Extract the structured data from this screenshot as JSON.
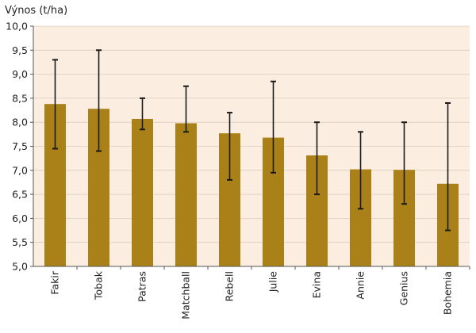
{
  "chart_data": {
    "type": "bar",
    "ylabel": "Výnos (t/ha)",
    "xlabel": "",
    "ylim": [
      5.0,
      10.0
    ],
    "yticks": [
      "5,0",
      "5,5",
      "6,0",
      "6,5",
      "7,0",
      "7,5",
      "8,0",
      "8,5",
      "9,0",
      "9,5",
      "10,0"
    ],
    "ytick_values": [
      5.0,
      5.5,
      6.0,
      6.5,
      7.0,
      7.5,
      8.0,
      8.5,
      9.0,
      9.5,
      10.0
    ],
    "categories": [
      "Fakir",
      "Tobak",
      "Patras",
      "Matchball",
      "Rebell",
      "Julie",
      "Evina",
      "Annie",
      "Genius",
      "Bohemia"
    ],
    "values": [
      8.38,
      8.28,
      8.07,
      7.98,
      7.77,
      7.68,
      7.31,
      7.02,
      7.01,
      6.72
    ],
    "error_low": [
      7.45,
      7.4,
      7.85,
      7.8,
      6.8,
      6.95,
      6.5,
      6.2,
      6.3,
      5.75
    ],
    "error_high": [
      9.3,
      9.5,
      8.5,
      8.75,
      8.2,
      8.85,
      8.0,
      7.8,
      8.0,
      8.4
    ],
    "colors": {
      "bar": "#a98118",
      "plot_bg": "#fbeee1",
      "error": "#1a1a1a",
      "axis": "#555555"
    }
  }
}
